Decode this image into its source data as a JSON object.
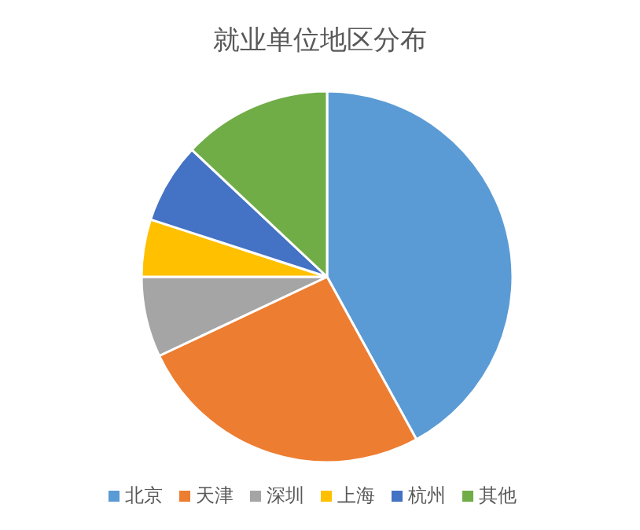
{
  "chart_data": {
    "type": "pie",
    "title": "就业单位地区分布",
    "categories": [
      "北京",
      "天津",
      "深圳",
      "上海",
      "杭州",
      "其他"
    ],
    "values": [
      42,
      26,
      7,
      5,
      7,
      13
    ],
    "colors": [
      "#5b9bd5",
      "#ed7d31",
      "#a5a5a5",
      "#ffc000",
      "#4472c4",
      "#70ad47"
    ],
    "legend": "bottom"
  }
}
